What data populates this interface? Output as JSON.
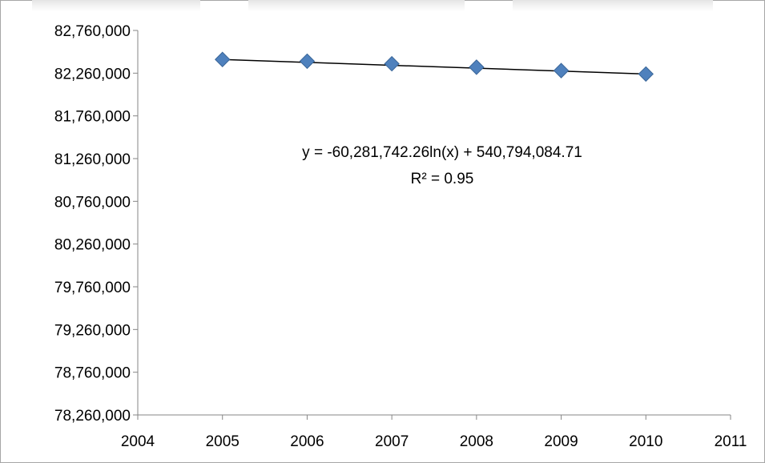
{
  "chart_data": {
    "type": "scatter",
    "title": "",
    "xlabel": "",
    "ylabel": "",
    "x": [
      2005,
      2006,
      2007,
      2008,
      2009,
      2010
    ],
    "y": [
      82420000,
      82400000,
      82370000,
      82330000,
      82290000,
      82250000
    ],
    "xlim": [
      2004,
      2011
    ],
    "ylim": [
      78260000,
      82760000
    ],
    "x_ticks": [
      "2004",
      "2005",
      "2006",
      "2007",
      "2008",
      "2009",
      "2010",
      "2011"
    ],
    "y_ticks": [
      "82,760,000",
      "82,260,000",
      "81,760,000",
      "81,260,000",
      "80,760,000",
      "80,260,000",
      "79,760,000",
      "79,260,000",
      "78,760,000",
      "78,260,000"
    ],
    "trendline": {
      "type": "logarithmic",
      "equation": "y = -60,281,742.26ln(x) + 540,794,084.71",
      "r_squared": "R² = 0.95",
      "y_start": 82420000,
      "y_end": 82250000
    },
    "grid": false,
    "marker": "diamond",
    "marker_color": "#4f81bd"
  }
}
